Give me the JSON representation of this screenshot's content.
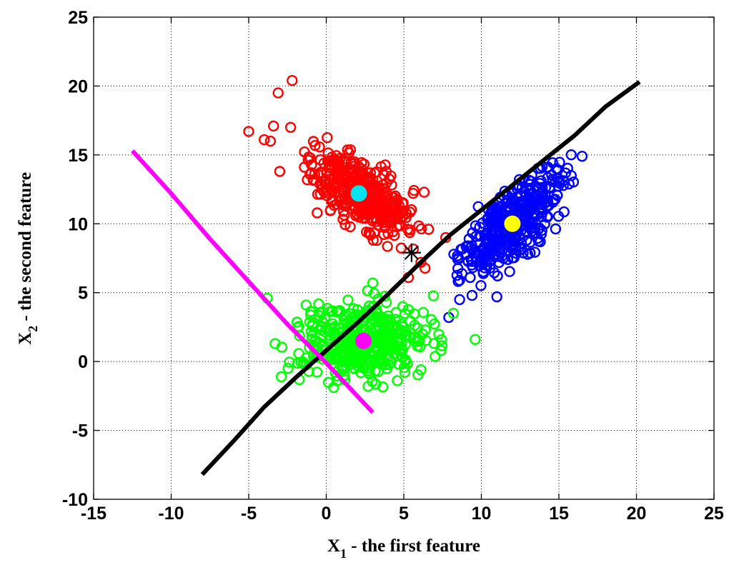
{
  "chart_data": {
    "type": "scatter",
    "xlabel_main": "X",
    "xlabel_sub": "1",
    "xlabel_rest": " - the first feature",
    "ylabel_main": "X",
    "ylabel_sub": "2",
    "ylabel_rest": " - the second feature",
    "xlim": [
      -15,
      25
    ],
    "ylim": [
      -10,
      25
    ],
    "xticks": [
      "-15",
      "-10",
      "-5",
      "0",
      "5",
      "10",
      "15",
      "20",
      "25"
    ],
    "xtick_values": [
      -15,
      -10,
      -5,
      0,
      5,
      10,
      15,
      20,
      25
    ],
    "yticks": [
      "-10",
      "-5",
      "0",
      "5",
      "10",
      "15",
      "20",
      "25"
    ],
    "ytick_values": [
      -10,
      -5,
      0,
      5,
      10,
      15,
      20,
      25
    ],
    "grid": true,
    "series": [
      {
        "marker": "circle-open",
        "color": "#ff0000",
        "center": [
          2.2,
          12.2
        ],
        "spread": [
          1.7,
          1.6
        ],
        "rho": -0.62,
        "count": 420,
        "outliers": [
          [
            -2.2,
            20.4
          ],
          [
            -3.1,
            19.5
          ],
          [
            -5.0,
            16.7
          ],
          [
            -4.0,
            16.1
          ],
          [
            -3.6,
            16.0
          ],
          [
            -3.0,
            13.8
          ],
          [
            -3.4,
            17.1
          ],
          [
            -2.3,
            17.0
          ],
          [
            6.6,
            9.6
          ],
          [
            7.7,
            9.0
          ],
          [
            6.1,
            7.2
          ],
          [
            5.3,
            6.1
          ]
        ]
      },
      {
        "marker": "circle-open",
        "color": "#0000ff",
        "center": [
          12.0,
          10.0
        ],
        "spread": [
          1.6,
          2.0
        ],
        "rho": 0.72,
        "count": 420,
        "outliers": [
          [
            16.5,
            14.9
          ],
          [
            8.6,
            5.9
          ],
          [
            8.6,
            4.5
          ],
          [
            7.9,
            3.2
          ],
          [
            13.8,
            8.7
          ],
          [
            9.4,
            4.8
          ],
          [
            11.0,
            4.7
          ]
        ]
      },
      {
        "marker": "circle-open",
        "color": "#00ff00",
        "center": [
          2.3,
          1.5
        ],
        "spread": [
          2.0,
          1.4
        ],
        "rho": 0.05,
        "count": 430,
        "outliers": [
          [
            -3.8,
            4.6
          ],
          [
            -3.3,
            1.3
          ],
          [
            -2.9,
            -1.1
          ],
          [
            9.6,
            1.6
          ],
          [
            8.2,
            3.5
          ],
          [
            7.4,
            0.8
          ],
          [
            6.1,
            -0.6
          ],
          [
            -1.3,
            4.1
          ],
          [
            3.0,
            5.7
          ],
          [
            2.7,
            -1.8
          ]
        ]
      }
    ],
    "centroids": [
      {
        "x": 2.1,
        "y": 12.2,
        "color": "#00e5ee"
      },
      {
        "x": 12.0,
        "y": 10.0,
        "color": "#ffff00"
      },
      {
        "x": 2.4,
        "y": 1.5,
        "color": "#ff00ff"
      }
    ],
    "lines": [
      {
        "color": "#000000",
        "points": [
          [
            -8.0,
            -8.2
          ],
          [
            -6.0,
            -5.8
          ],
          [
            -4.0,
            -3.3
          ],
          [
            -2.0,
            -1.2
          ],
          [
            0.0,
            0.8
          ],
          [
            2.0,
            2.8
          ],
          [
            4.0,
            4.9
          ],
          [
            6.0,
            7.1
          ],
          [
            8.0,
            9.2
          ],
          [
            10.0,
            11.0
          ],
          [
            12.0,
            12.8
          ],
          [
            14.0,
            14.6
          ],
          [
            16.0,
            16.4
          ],
          [
            18.0,
            18.5
          ],
          [
            20.2,
            20.3
          ]
        ]
      },
      {
        "color": "#ff00ff",
        "points": [
          [
            -12.5,
            15.3
          ],
          [
            -10.0,
            12.2
          ],
          [
            -7.5,
            8.9
          ],
          [
            -5.0,
            5.8
          ],
          [
            -2.5,
            2.7
          ],
          [
            0.0,
            -0.1
          ],
          [
            1.5,
            -1.9
          ],
          [
            3.0,
            -3.7
          ]
        ]
      }
    ],
    "point": {
      "x": 5.5,
      "y": 7.9,
      "marker": "asterisk",
      "color": "#000000"
    }
  }
}
